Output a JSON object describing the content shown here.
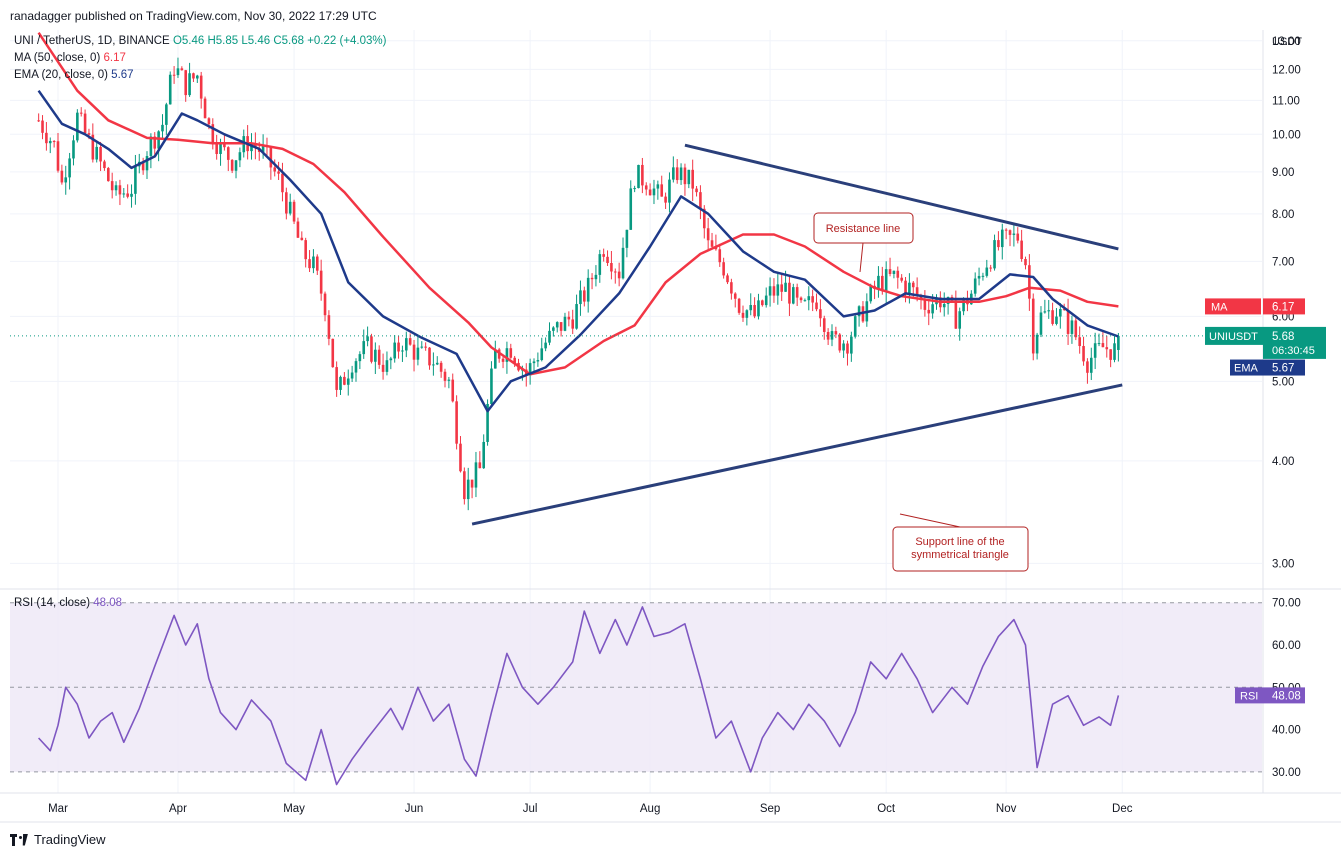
{
  "header": {
    "published_by": "ranadagger published on TradingView.com, Nov 30, 2022 17:29 UTC"
  },
  "legend": {
    "symbol": "UNI / TetherUS, 1D, BINANCE",
    "ohlc": "O5.46 H5.85 L5.46 C5.68 +0.22 (+4.03%)",
    "ma": "MA (50, close, 0)",
    "ma_value": "6.17",
    "ema": "EMA (20, close, 0)",
    "ema_value": "5.67",
    "rsi": "RSI (14, close)",
    "rsi_value": "48.08"
  },
  "footer": {
    "brand": "TradingView"
  },
  "colors": {
    "up": "#089981",
    "down": "#f23645",
    "ma": "#f23645",
    "ema": "#1e3a8a",
    "trendline": "#2a3f7a",
    "rsi": "#7e57c2",
    "rsi_band": "#ede7f6",
    "annotation": "#b22222"
  },
  "chart_data": [
    {
      "type": "candlestick",
      "title": "UNI / TetherUS, 1D, BINANCE",
      "y_unit": "USDT",
      "ylim": [
        2.8,
        13.4
      ],
      "y_ticks": [
        "3.00",
        "4.00",
        "5.00",
        "6.00",
        "7.00",
        "8.00",
        "9.00",
        "10.00",
        "11.00",
        "12.00",
        "13.00"
      ],
      "x_labels": [
        "Mar",
        "Apr",
        "May",
        "Jun",
        "Jul",
        "Aug",
        "Sep",
        "Oct",
        "Nov",
        "Dec"
      ],
      "start_date": "2022-02-24",
      "close_path": [
        [
          "2022-02-24",
          10.4
        ],
        [
          "2022-02-28",
          9.7
        ],
        [
          "2022-03-02",
          8.7
        ],
        [
          "2022-03-06",
          10.5
        ],
        [
          "2022-03-08",
          10.0
        ],
        [
          "2022-03-12",
          9.2
        ],
        [
          "2022-03-16",
          8.4
        ],
        [
          "2022-03-20",
          8.6
        ],
        [
          "2022-03-24",
          9.6
        ],
        [
          "2022-03-28",
          10.3
        ],
        [
          "2022-03-31",
          12.1
        ],
        [
          "2022-04-03",
          11.5
        ],
        [
          "2022-04-06",
          11.8
        ],
        [
          "2022-04-09",
          10.2
        ],
        [
          "2022-04-12",
          9.6
        ],
        [
          "2022-04-15",
          9.3
        ],
        [
          "2022-04-19",
          9.8
        ],
        [
          "2022-04-23",
          9.5
        ],
        [
          "2022-04-27",
          8.8
        ],
        [
          "2022-04-30",
          8.0
        ],
        [
          "2022-05-03",
          7.2
        ],
        [
          "2022-05-06",
          6.9
        ],
        [
          "2022-05-09",
          6.2
        ],
        [
          "2022-05-12",
          4.8
        ],
        [
          "2022-05-16",
          5.3
        ],
        [
          "2022-05-20",
          5.5
        ],
        [
          "2022-05-25",
          5.2
        ],
        [
          "2022-05-29",
          5.6
        ],
        [
          "2022-06-02",
          5.4
        ],
        [
          "2022-06-06",
          5.3
        ],
        [
          "2022-06-10",
          5.0
        ],
        [
          "2022-06-14",
          3.7
        ],
        [
          "2022-06-18",
          3.9
        ],
        [
          "2022-06-22",
          5.4
        ],
        [
          "2022-06-26",
          5.5
        ],
        [
          "2022-06-30",
          5.1
        ],
        [
          "2022-07-04",
          5.5
        ],
        [
          "2022-07-08",
          5.8
        ],
        [
          "2022-07-12",
          6.0
        ],
        [
          "2022-07-16",
          6.5
        ],
        [
          "2022-07-20",
          7.3
        ],
        [
          "2022-07-24",
          6.8
        ],
        [
          "2022-07-28",
          8.9
        ],
        [
          "2022-07-31",
          8.8
        ],
        [
          "2022-08-04",
          8.3
        ],
        [
          "2022-08-08",
          9.0
        ],
        [
          "2022-08-12",
          8.7
        ],
        [
          "2022-08-16",
          7.3
        ],
        [
          "2022-08-20",
          6.9
        ],
        [
          "2022-08-24",
          6.2
        ],
        [
          "2022-08-28",
          6.0
        ],
        [
          "2022-09-01",
          6.4
        ],
        [
          "2022-09-05",
          6.5
        ],
        [
          "2022-09-09",
          6.1
        ],
        [
          "2022-09-13",
          6.3
        ],
        [
          "2022-09-17",
          5.6
        ],
        [
          "2022-09-21",
          5.6
        ],
        [
          "2022-09-25",
          6.1
        ],
        [
          "2022-09-29",
          6.6
        ],
        [
          "2022-10-03",
          6.7
        ],
        [
          "2022-10-07",
          6.5
        ],
        [
          "2022-10-11",
          6.2
        ],
        [
          "2022-10-15",
          6.3
        ],
        [
          "2022-10-19",
          6.0
        ],
        [
          "2022-10-23",
          6.4
        ],
        [
          "2022-10-27",
          7.0
        ],
        [
          "2022-10-31",
          7.4
        ],
        [
          "2022-11-04",
          7.5
        ],
        [
          "2022-11-06",
          7.0
        ],
        [
          "2022-11-08",
          5.6
        ],
        [
          "2022-11-10",
          6.0
        ],
        [
          "2022-11-14",
          6.1
        ],
        [
          "2022-11-18",
          5.8
        ],
        [
          "2022-11-22",
          5.3
        ],
        [
          "2022-11-26",
          5.5
        ],
        [
          "2022-11-29",
          5.46
        ],
        [
          "2022-11-30",
          5.68
        ]
      ],
      "series": [
        {
          "name": "MA (50, close, 0)",
          "last": 6.17,
          "path": [
            [
              "2022-02-24",
              13.3
            ],
            [
              "2022-03-06",
              11.3
            ],
            [
              "2022-03-14",
              10.4
            ],
            [
              "2022-03-24",
              9.9
            ],
            [
              "2022-04-01",
              9.85
            ],
            [
              "2022-04-10",
              9.75
            ],
            [
              "2022-04-20",
              9.75
            ],
            [
              "2022-04-28",
              9.6
            ],
            [
              "2022-05-06",
              9.2
            ],
            [
              "2022-05-14",
              8.5
            ],
            [
              "2022-05-24",
              7.5
            ],
            [
              "2022-06-05",
              6.5
            ],
            [
              "2022-06-15",
              5.9
            ],
            [
              "2022-06-21",
              5.5
            ],
            [
              "2022-07-01",
              5.1
            ],
            [
              "2022-07-10",
              5.2
            ],
            [
              "2022-07-20",
              5.6
            ],
            [
              "2022-07-28",
              5.85
            ],
            [
              "2022-08-05",
              6.6
            ],
            [
              "2022-08-14",
              7.15
            ],
            [
              "2022-08-25",
              7.55
            ],
            [
              "2022-09-02",
              7.55
            ],
            [
              "2022-09-10",
              7.3
            ],
            [
              "2022-09-20",
              6.8
            ],
            [
              "2022-09-28",
              6.5
            ],
            [
              "2022-10-05",
              6.35
            ],
            [
              "2022-10-15",
              6.25
            ],
            [
              "2022-10-25",
              6.25
            ],
            [
              "2022-11-01",
              6.35
            ],
            [
              "2022-11-07",
              6.5
            ],
            [
              "2022-11-15",
              6.45
            ],
            [
              "2022-11-22",
              6.25
            ],
            [
              "2022-11-30",
              6.17
            ]
          ]
        },
        {
          "name": "EMA (20, close, 0)",
          "last": 5.67,
          "path": [
            [
              "2022-02-24",
              11.3
            ],
            [
              "2022-03-02",
              10.3
            ],
            [
              "2022-03-08",
              10.0
            ],
            [
              "2022-03-14",
              9.6
            ],
            [
              "2022-03-20",
              9.1
            ],
            [
              "2022-03-26",
              9.4
            ],
            [
              "2022-04-02",
              10.6
            ],
            [
              "2022-04-06",
              10.4
            ],
            [
              "2022-04-13",
              10.0
            ],
            [
              "2022-04-22",
              9.6
            ],
            [
              "2022-04-30",
              8.8
            ],
            [
              "2022-05-08",
              8.0
            ],
            [
              "2022-05-15",
              6.6
            ],
            [
              "2022-05-24",
              6.0
            ],
            [
              "2022-06-03",
              5.65
            ],
            [
              "2022-06-12",
              5.4
            ],
            [
              "2022-06-20",
              4.6
            ],
            [
              "2022-06-26",
              5.0
            ],
            [
              "2022-07-05",
              5.2
            ],
            [
              "2022-07-14",
              5.7
            ],
            [
              "2022-07-24",
              6.4
            ],
            [
              "2022-08-01",
              7.3
            ],
            [
              "2022-08-09",
              8.4
            ],
            [
              "2022-08-16",
              8.0
            ],
            [
              "2022-08-25",
              7.2
            ],
            [
              "2022-09-02",
              6.8
            ],
            [
              "2022-09-10",
              6.65
            ],
            [
              "2022-09-20",
              6.0
            ],
            [
              "2022-09-28",
              6.1
            ],
            [
              "2022-10-06",
              6.4
            ],
            [
              "2022-10-15",
              6.3
            ],
            [
              "2022-10-25",
              6.3
            ],
            [
              "2022-11-02",
              6.75
            ],
            [
              "2022-11-08",
              6.7
            ],
            [
              "2022-11-13",
              6.3
            ],
            [
              "2022-11-22",
              5.85
            ],
            [
              "2022-11-30",
              5.67
            ]
          ]
        }
      ],
      "annotations": {
        "resistance_label": "Resistance line",
        "support_label_line1": "Support line of the",
        "support_label_line2": "symmetrical triangle",
        "resistance_line": [
          [
            "2022-08-10",
            9.7
          ],
          [
            "2022-11-30",
            7.25
          ]
        ],
        "support_line": [
          [
            "2022-06-16",
            3.35
          ],
          [
            "2022-12-01",
            4.95
          ]
        ]
      },
      "price_labels": {
        "symbol_label": "UNIUSDT",
        "last_price": "5.68",
        "countdown": "06:30:45",
        "ma_label": "MA",
        "ma_value": "6.17",
        "ema_label": "EMA",
        "ema_value": "5.67"
      }
    },
    {
      "type": "line",
      "title": "RSI (14, close)",
      "ylim": [
        25,
        73
      ],
      "y_ticks": [
        "30.00",
        "40.00",
        "50.00",
        "60.00",
        "70.00"
      ],
      "band": [
        30,
        70
      ],
      "mid_line": 50,
      "label": "RSI",
      "last": "48.08",
      "path": [
        [
          "2022-02-24",
          38
        ],
        [
          "2022-02-27",
          35
        ],
        [
          "2022-03-01",
          41
        ],
        [
          "2022-03-03",
          50
        ],
        [
          "2022-03-06",
          46
        ],
        [
          "2022-03-09",
          38
        ],
        [
          "2022-03-12",
          42
        ],
        [
          "2022-03-15",
          44
        ],
        [
          "2022-03-18",
          37
        ],
        [
          "2022-03-22",
          45
        ],
        [
          "2022-03-26",
          55
        ],
        [
          "2022-03-31",
          67
        ],
        [
          "2022-04-03",
          60
        ],
        [
          "2022-04-06",
          65
        ],
        [
          "2022-04-09",
          52
        ],
        [
          "2022-04-12",
          44
        ],
        [
          "2022-04-16",
          40
        ],
        [
          "2022-04-20",
          47
        ],
        [
          "2022-04-25",
          42
        ],
        [
          "2022-04-29",
          32
        ],
        [
          "2022-05-04",
          28
        ],
        [
          "2022-05-08",
          40
        ],
        [
          "2022-05-12",
          27
        ],
        [
          "2022-05-16",
          33
        ],
        [
          "2022-05-20",
          38
        ],
        [
          "2022-05-26",
          45
        ],
        [
          "2022-05-29",
          40
        ],
        [
          "2022-06-02",
          50
        ],
        [
          "2022-06-06",
          42
        ],
        [
          "2022-06-10",
          46
        ],
        [
          "2022-06-14",
          33
        ],
        [
          "2022-06-17",
          29
        ],
        [
          "2022-06-21",
          44
        ],
        [
          "2022-06-25",
          58
        ],
        [
          "2022-06-29",
          50
        ],
        [
          "2022-07-03",
          46
        ],
        [
          "2022-07-07",
          50
        ],
        [
          "2022-07-12",
          56
        ],
        [
          "2022-07-15",
          68
        ],
        [
          "2022-07-19",
          58
        ],
        [
          "2022-07-23",
          66
        ],
        [
          "2022-07-26",
          60
        ],
        [
          "2022-07-30",
          69
        ],
        [
          "2022-08-02",
          62
        ],
        [
          "2022-08-06",
          63
        ],
        [
          "2022-08-10",
          65
        ],
        [
          "2022-08-14",
          52
        ],
        [
          "2022-08-18",
          38
        ],
        [
          "2022-08-22",
          42
        ],
        [
          "2022-08-27",
          30
        ],
        [
          "2022-08-30",
          38
        ],
        [
          "2022-09-03",
          44
        ],
        [
          "2022-09-07",
          40
        ],
        [
          "2022-09-11",
          46
        ],
        [
          "2022-09-15",
          42
        ],
        [
          "2022-09-19",
          36
        ],
        [
          "2022-09-23",
          44
        ],
        [
          "2022-09-27",
          56
        ],
        [
          "2022-10-01",
          52
        ],
        [
          "2022-10-05",
          58
        ],
        [
          "2022-10-09",
          52
        ],
        [
          "2022-10-13",
          44
        ],
        [
          "2022-10-18",
          50
        ],
        [
          "2022-10-22",
          46
        ],
        [
          "2022-10-26",
          55
        ],
        [
          "2022-10-30",
          62
        ],
        [
          "2022-11-03",
          66
        ],
        [
          "2022-11-06",
          60
        ],
        [
          "2022-11-09",
          31
        ],
        [
          "2022-11-13",
          46
        ],
        [
          "2022-11-17",
          48
        ],
        [
          "2022-11-21",
          41
        ],
        [
          "2022-11-25",
          43
        ],
        [
          "2022-11-28",
          41
        ],
        [
          "2022-11-30",
          48.08
        ]
      ]
    }
  ]
}
